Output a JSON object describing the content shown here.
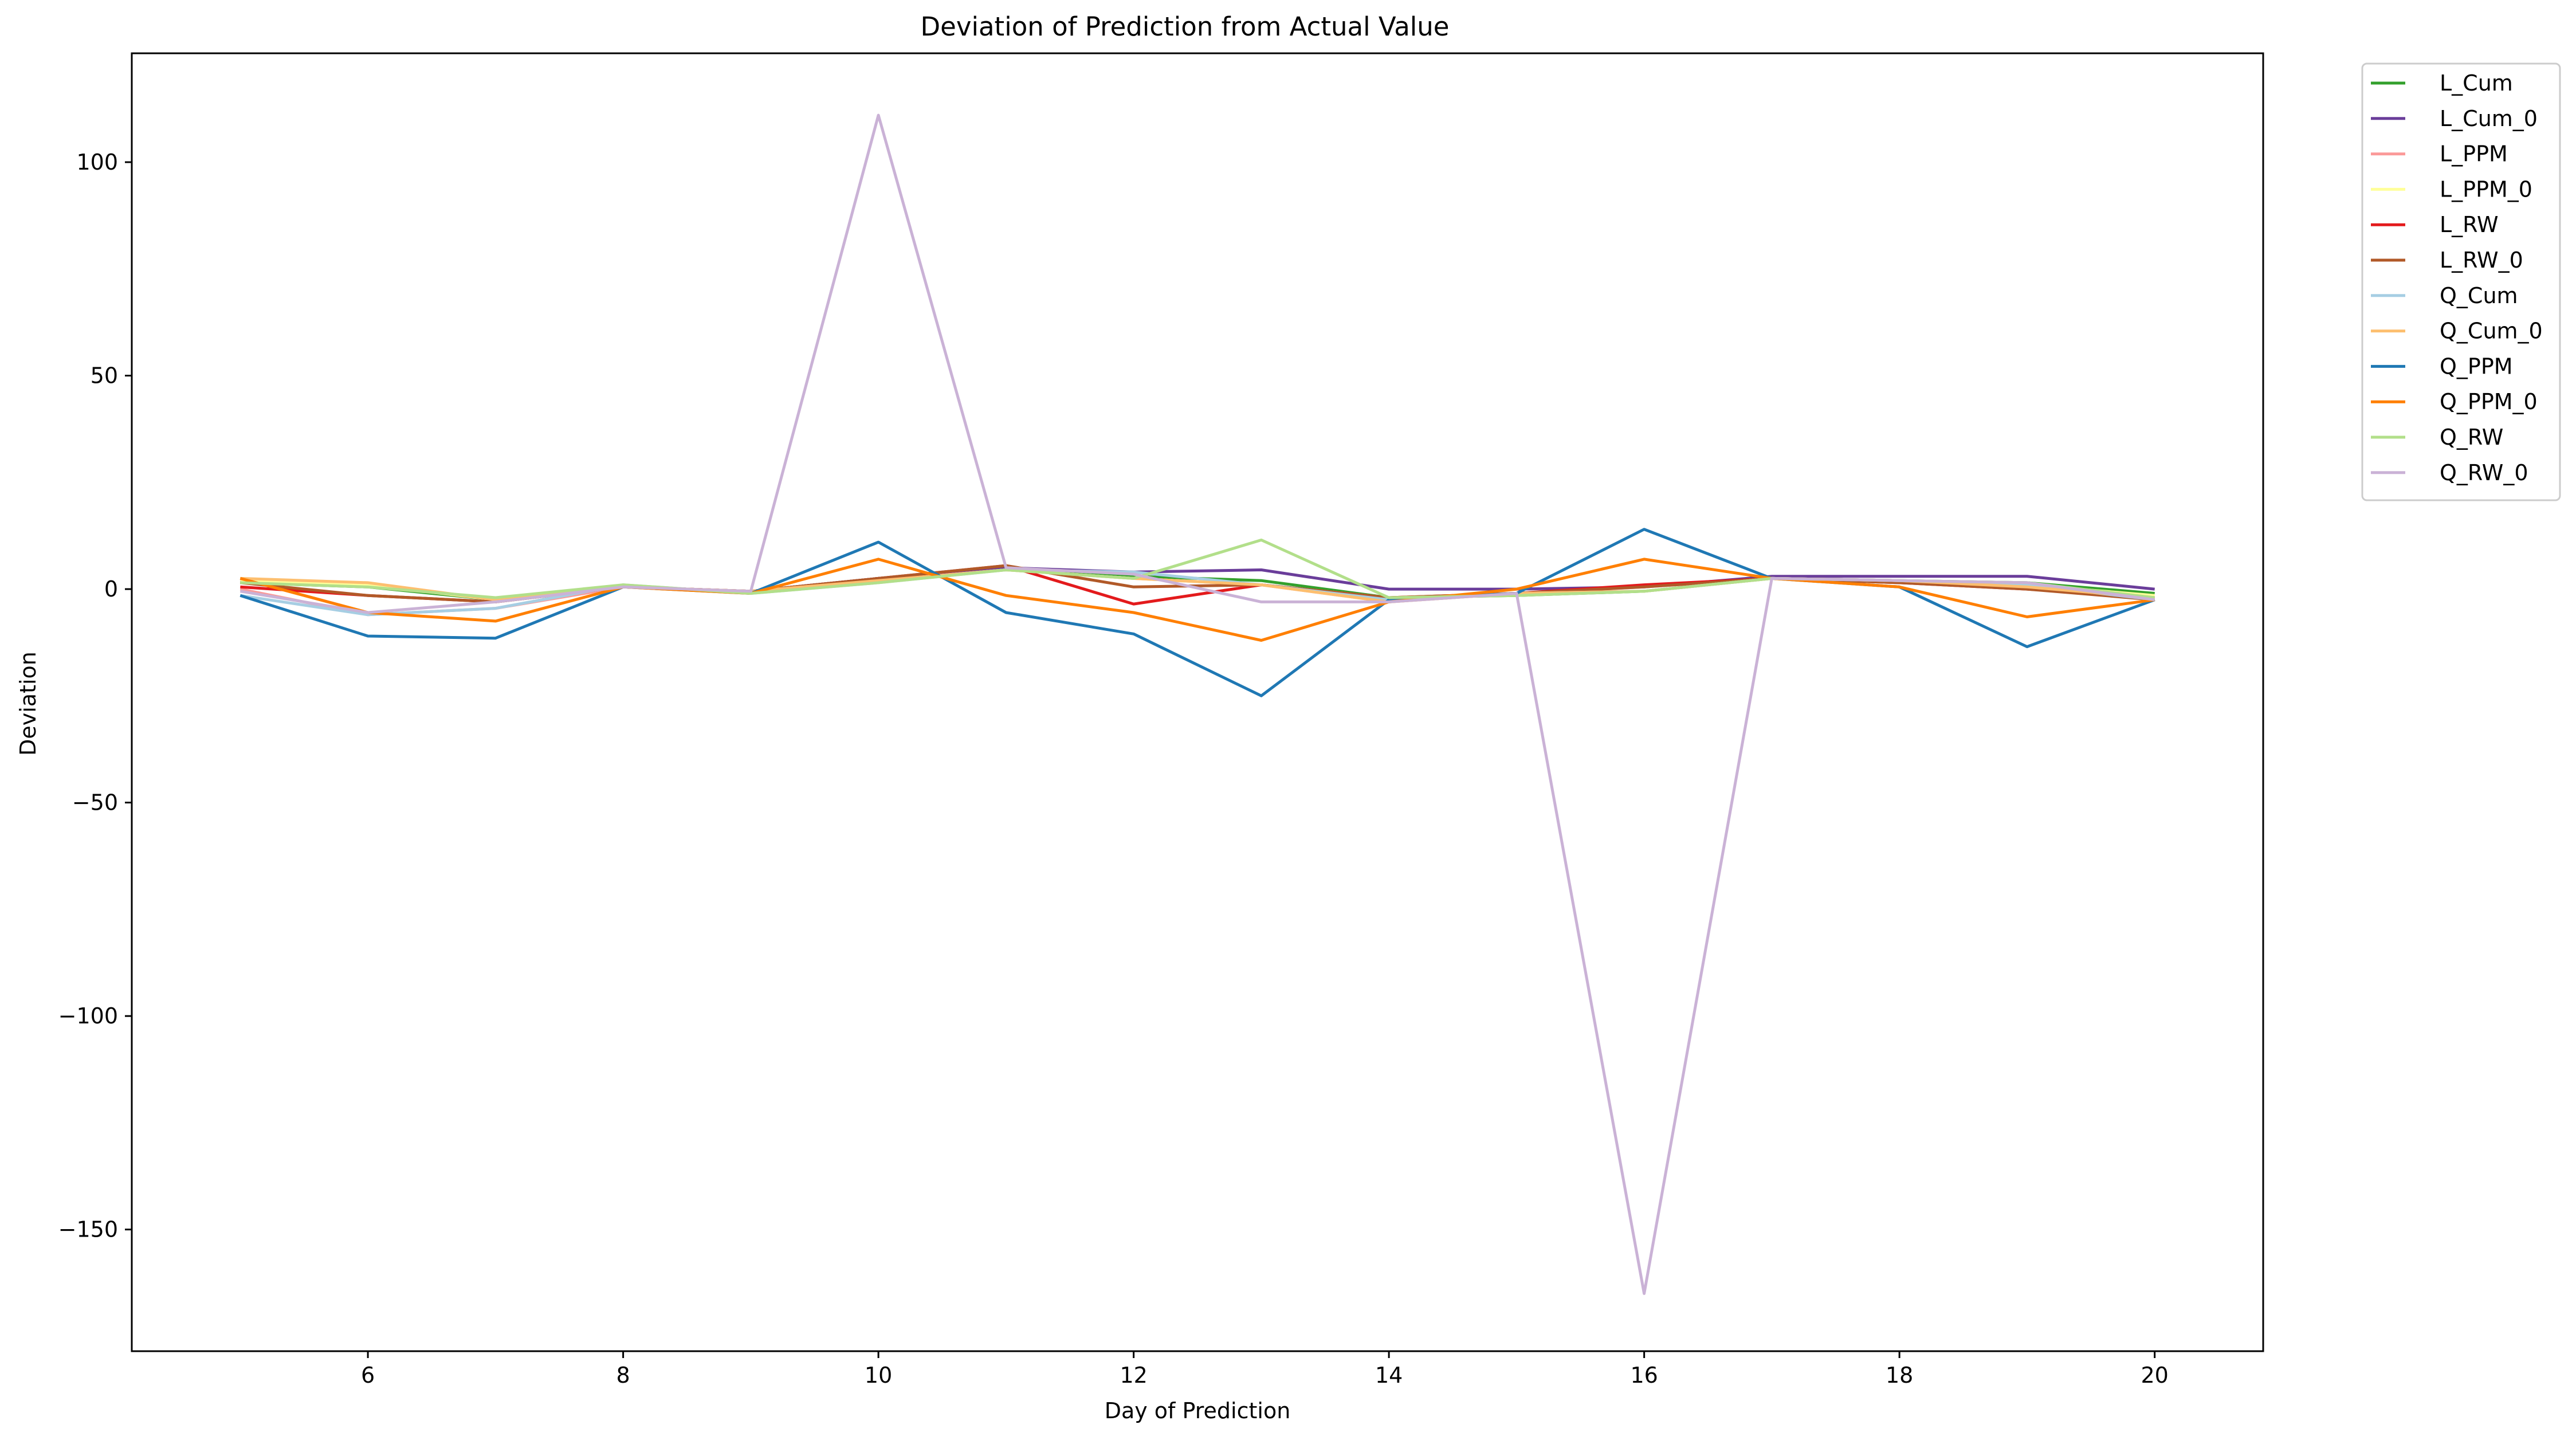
{
  "chart_data": {
    "type": "line",
    "title": "Deviation of Prediction from Actual Value",
    "xlabel": "Day of Prediction",
    "ylabel": "Deviation",
    "xlim": [
      4.15,
      20.85
    ],
    "ylim": [
      -178.5,
      125.5
    ],
    "xticks": [
      6,
      8,
      10,
      12,
      14,
      16,
      18,
      20
    ],
    "yticks": [
      100,
      50,
      0,
      -50,
      -100,
      -150
    ],
    "ytick_labels": [
      "100",
      "50",
      "0",
      "−50",
      "−100",
      "−150"
    ],
    "grid": false,
    "legend_position": "upper-right-outside",
    "x": [
      5,
      6,
      7,
      8,
      9,
      10,
      11,
      12,
      13,
      14,
      15,
      16,
      17,
      18,
      19,
      20
    ],
    "series": [
      {
        "name": "L_Cum",
        "color": "#33a02c",
        "values": [
          1.5,
          0.5,
          -2.5,
          0.5,
          -0.5,
          2.5,
          5,
          3,
          2,
          -2,
          -1.5,
          -0.5,
          2.5,
          2,
          1.5,
          -1
        ]
      },
      {
        "name": "L_Cum_0",
        "color": "#6a3d9a",
        "values": [
          2,
          1,
          -2.5,
          0.5,
          -0.5,
          2.5,
          5,
          4,
          4.5,
          0,
          0,
          0.5,
          3,
          3,
          3,
          0
        ]
      },
      {
        "name": "L_PPM",
        "color": "#fb9a99",
        "values": [
          0,
          -6,
          -4.5,
          0.5,
          -0.5,
          2,
          4.5,
          2.5,
          1,
          -3,
          -1,
          0.5,
          2.5,
          2,
          1,
          -2.5
        ]
      },
      {
        "name": "L_PPM_0",
        "color": "#ffff99",
        "values": [
          2,
          1,
          -2.5,
          0.5,
          -0.5,
          2,
          4.5,
          2.5,
          1,
          -2,
          -1,
          -0.5,
          2.5,
          2,
          1,
          -1.5
        ]
      },
      {
        "name": "L_RW",
        "color": "#e31a1c",
        "values": [
          0.5,
          -1.5,
          -3,
          0.5,
          -0.5,
          2.5,
          5.5,
          -3.5,
          1,
          -2,
          -1,
          1,
          2.5,
          1.5,
          0,
          -2
        ]
      },
      {
        "name": "L_RW_0",
        "color": "#b15928",
        "values": [
          1.5,
          -1.5,
          -3,
          0.5,
          -0.5,
          2.5,
          5.5,
          0.5,
          1,
          -2,
          -1,
          0.5,
          2.5,
          1.5,
          0,
          -2.5
        ]
      },
      {
        "name": "Q_Cum",
        "color": "#a6cee3",
        "values": [
          -1.5,
          -6,
          -4.5,
          1,
          -1,
          1.5,
          4.5,
          4,
          1,
          -2.5,
          -1,
          -0.5,
          2.5,
          2,
          1,
          -2.5
        ]
      },
      {
        "name": "Q_Cum_0",
        "color": "#fdbf6f",
        "values": [
          2.5,
          1.5,
          -2.5,
          0.5,
          -0.5,
          2,
          4.5,
          2.5,
          1,
          -3,
          -1,
          -0.5,
          2.5,
          2,
          0.5,
          -2
        ]
      },
      {
        "name": "Q_PPM",
        "color": "#1f78b4",
        "values": [
          -1.5,
          -11,
          -11.5,
          0.5,
          -1,
          11,
          -5.5,
          -10.5,
          -25,
          -2.5,
          -1,
          14,
          2.5,
          0.5,
          -13.5,
          -2.5
        ]
      },
      {
        "name": "Q_PPM_0",
        "color": "#ff7f00",
        "values": [
          2.5,
          -5.5,
          -7.5,
          0.5,
          -1,
          7,
          -1.5,
          -5.5,
          -12,
          -3,
          0,
          7,
          2.5,
          0.5,
          -6.5,
          -2.5
        ]
      },
      {
        "name": "Q_RW",
        "color": "#b2df8a",
        "values": [
          1.5,
          0.5,
          -2,
          1,
          -1,
          1.5,
          4.5,
          2.5,
          11.5,
          -2,
          -1.5,
          -0.5,
          2.5,
          2,
          1.5,
          -2
        ]
      },
      {
        "name": "Q_RW_0",
        "color": "#cab2d6",
        "values": [
          -0.5,
          -5.5,
          -3,
          0.5,
          -0.5,
          111,
          5,
          3.5,
          -3,
          -3,
          -1,
          -165,
          2.5,
          2,
          1.5,
          -2.5
        ]
      }
    ]
  }
}
